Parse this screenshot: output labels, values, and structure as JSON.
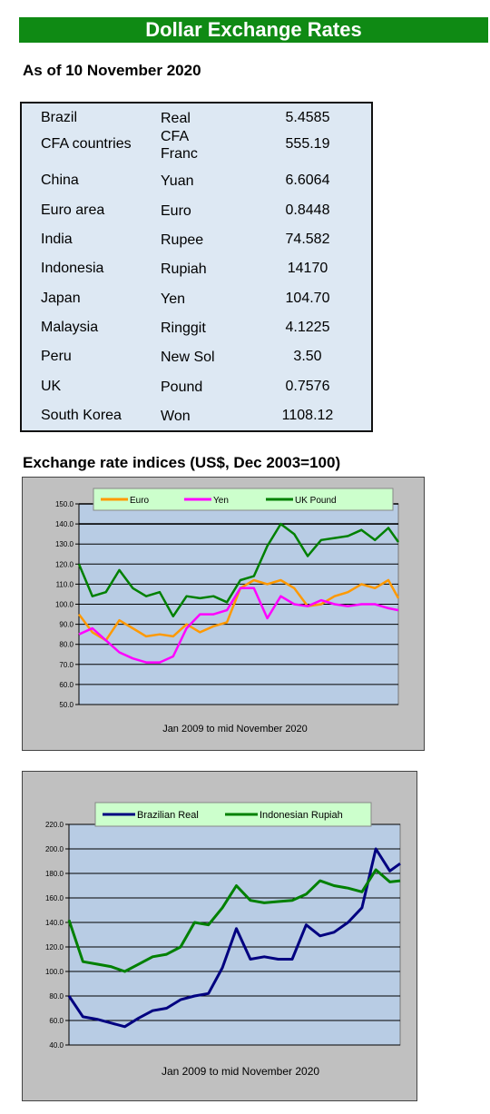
{
  "banner": "Dollar Exchange Rates",
  "as_of": "As of 10 November 2020",
  "rates": [
    {
      "country": "Brazil",
      "currency": "Real",
      "rate": "5.4585"
    },
    {
      "country": "CFA countries",
      "currency": "CFA Franc",
      "rate": "555.19"
    },
    {
      "country": "China",
      "currency": "Yuan",
      "rate": "6.6064"
    },
    {
      "country": "Euro area",
      "currency": "Euro",
      "rate": "0.8448"
    },
    {
      "country": "India",
      "currency": "Rupee",
      "rate": "74.582"
    },
    {
      "country": "Indonesia",
      "currency": "Rupiah",
      "rate": "14170"
    },
    {
      "country": "Japan",
      "currency": "Yen",
      "rate": "104.70"
    },
    {
      "country": "Malaysia",
      "currency": "Ringgit",
      "rate": "4.1225"
    },
    {
      "country": "Peru",
      "currency": "New Sol",
      "rate": "3.50"
    },
    {
      "country": "UK",
      "currency": "Pound",
      "rate": "0.7576"
    },
    {
      "country": "South Korea",
      "currency": "Won",
      "rate": "1108.12"
    }
  ],
  "indices_title": "Exchange rate indices (US$, Dec 2003=100)",
  "chart_data": [
    {
      "type": "line",
      "title": "",
      "xlabel": "Jan 2009  to mid November 2020",
      "ylabel": "",
      "ylim": [
        50,
        150
      ],
      "yticks": [
        "50.0",
        "60.0",
        "70.0",
        "80.0",
        "90.0",
        "100.0",
        "110.0",
        "120.0",
        "130.0",
        "140.0",
        "150.0"
      ],
      "grid": true,
      "legend": "top",
      "x": [
        2009.0,
        2009.5,
        2010.0,
        2010.5,
        2011.0,
        2011.5,
        2012.0,
        2012.5,
        2013.0,
        2013.5,
        2014.0,
        2014.5,
        2015.0,
        2015.5,
        2016.0,
        2016.5,
        2017.0,
        2017.5,
        2018.0,
        2018.5,
        2019.0,
        2019.5,
        2020.0,
        2020.5,
        2020.87
      ],
      "series": [
        {
          "name": "Euro",
          "color": "#ff9900",
          "values": [
            95,
            86,
            82,
            92,
            88,
            84,
            85,
            84,
            90,
            86,
            89,
            91,
            108,
            112,
            110,
            112,
            108,
            99,
            100,
            104,
            106,
            110,
            108,
            112,
            103
          ]
        },
        {
          "name": "Yen",
          "color": "#ff00ff",
          "values": [
            85,
            88,
            82,
            76,
            73,
            71,
            71,
            74,
            88,
            95,
            95,
            97,
            108,
            108,
            93,
            104,
            100,
            99,
            102,
            100,
            99,
            100,
            100,
            98,
            97
          ]
        },
        {
          "name": "UK Pound",
          "color": "#008000",
          "values": [
            120,
            104,
            106,
            117,
            108,
            104,
            106,
            94,
            104,
            103,
            104,
            101,
            112,
            114,
            129,
            140,
            135,
            124,
            132,
            133,
            134,
            137,
            132,
            138,
            131
          ]
        }
      ]
    },
    {
      "type": "line",
      "title": "",
      "xlabel": "Jan 2009  to mid November 2020",
      "ylabel": "",
      "ylim": [
        40,
        220
      ],
      "yticks": [
        "40.0",
        "60.0",
        "80.0",
        "100.0",
        "120.0",
        "140.0",
        "160.0",
        "180.0",
        "200.0",
        "220.0"
      ],
      "grid": true,
      "legend": "top",
      "x": [
        2009.0,
        2009.5,
        2010.0,
        2010.5,
        2011.0,
        2011.5,
        2012.0,
        2012.5,
        2013.0,
        2013.5,
        2014.0,
        2014.5,
        2015.0,
        2015.5,
        2016.0,
        2016.5,
        2017.0,
        2017.5,
        2018.0,
        2018.5,
        2019.0,
        2019.5,
        2020.0,
        2020.5,
        2020.87
      ],
      "series": [
        {
          "name": "Brazilian Real",
          "color": "#000080",
          "values": [
            80,
            63,
            61,
            58,
            55,
            62,
            68,
            70,
            77,
            80,
            82,
            103,
            135,
            110,
            112,
            110,
            110,
            138,
            129,
            132,
            140,
            152,
            200,
            182,
            188
          ]
        },
        {
          "name": "Indonesian Rupiah",
          "color": "#008000",
          "values": [
            142,
            108,
            106,
            104,
            100,
            106,
            112,
            114,
            120,
            140,
            138,
            152,
            170,
            158,
            156,
            157,
            158,
            163,
            174,
            170,
            168,
            165,
            183,
            173,
            174
          ]
        }
      ]
    }
  ]
}
